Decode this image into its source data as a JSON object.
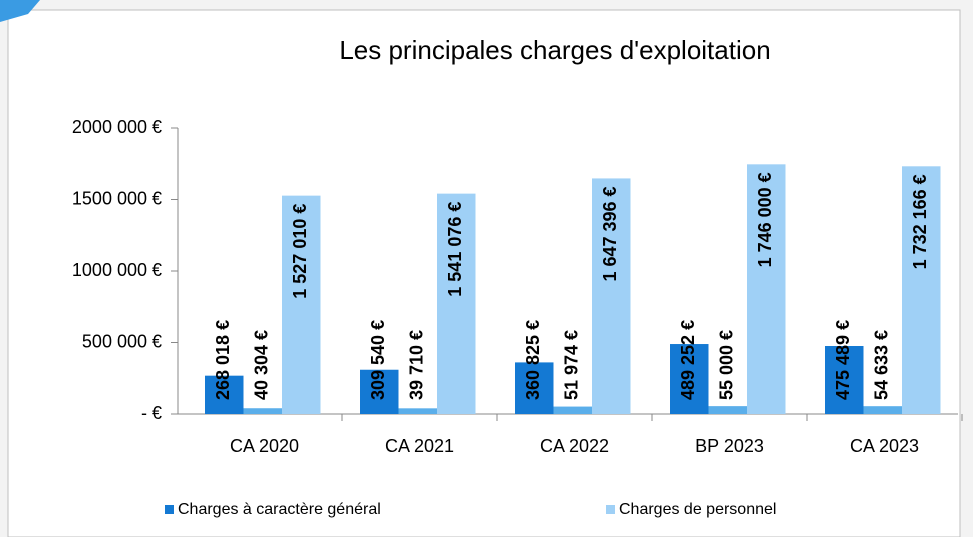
{
  "chart_data": {
    "type": "bar",
    "title": "Les principales charges d'exploitation",
    "categories": [
      "CA 2020",
      "CA 2021",
      "CA 2022",
      "BP 2023",
      "CA 2023"
    ],
    "series": [
      {
        "name": "Charges à caractère général",
        "color": "#1479d3",
        "values": [
          268018,
          309540,
          360825,
          489252,
          475489
        ],
        "value_labels": [
          "268 018 €",
          "309 540 €",
          "360 825 €",
          "489 252 €",
          "475 489 €"
        ]
      },
      {
        "color": "#5aaeea",
        "values": [
          40304,
          39710,
          51974,
          55000,
          54633
        ],
        "value_labels": [
          "40 304 €",
          "39 710 €",
          "51 974 €",
          "55 000 €",
          "54 633 €"
        ]
      },
      {
        "name": "Charges de personnel",
        "color": "#9fd0f6",
        "values": [
          1527010,
          1541076,
          1647396,
          1746000,
          1732166
        ],
        "value_labels": [
          "1 527 010 €",
          "1 541 076 €",
          "1 647 396 €",
          "1 746 000 €",
          "1 732 166 €"
        ]
      }
    ],
    "ylim": [
      0,
      2000000
    ],
    "yticks": [
      {
        "value": 0,
        "label": "- €"
      },
      {
        "value": 500000,
        "label": "500 000 €"
      },
      {
        "value": 1000000,
        "label": "1000 000 €"
      },
      {
        "value": 1500000,
        "label": "1500 000 €"
      },
      {
        "value": 2000000,
        "label": "2000 000 €"
      }
    ],
    "grid": false
  }
}
